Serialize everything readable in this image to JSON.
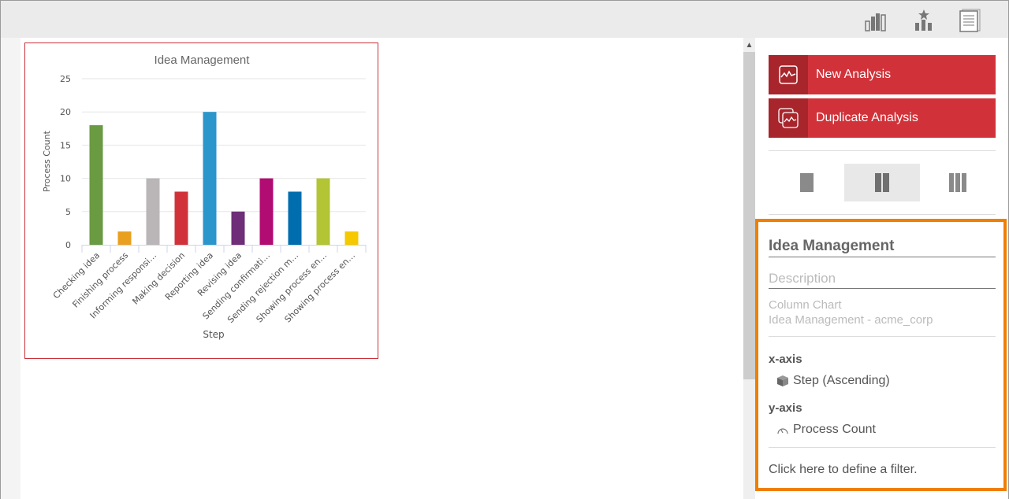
{
  "toolbar": {
    "icons": [
      "bar-chart-icon",
      "favorites-chart-icon",
      "report-pages-icon"
    ]
  },
  "actions": {
    "new_analysis": "New Analysis",
    "duplicate_analysis": "Duplicate Analysis"
  },
  "layout_options": {
    "selected": "two-column",
    "options": [
      "one-column",
      "two-column",
      "three-column"
    ]
  },
  "info": {
    "title": "Idea Management",
    "description_placeholder": "Description",
    "chart_type": "Column Chart",
    "source": "Idea Management - acme_corp",
    "x_axis_label": "x-axis",
    "x_axis_value": "Step (Ascending)",
    "y_axis_label": "y-axis",
    "y_axis_value": "Process Count",
    "filter_link": "Click here to define a filter."
  },
  "colors": {
    "accent": "#d13239",
    "highlight": "#f07e00"
  },
  "chart_data": {
    "type": "bar",
    "title": "Idea Management",
    "xlabel": "Step",
    "ylabel": "Process Count",
    "ylim": [
      0,
      25
    ],
    "yticks": [
      0,
      5,
      10,
      15,
      20,
      25
    ],
    "grid": true,
    "categories": [
      "Checking idea",
      "Finishing process",
      "Informing responsi…",
      "Making decision",
      "Reporting idea",
      "Revising idea",
      "Sending confirmati…",
      "Sending rejection m…",
      "Showing process en…",
      "Showing process en…"
    ],
    "values": [
      18,
      2,
      10,
      8,
      20,
      5,
      10,
      8,
      10,
      2
    ],
    "colors": [
      "#6a9a42",
      "#e9a020",
      "#bab6b8",
      "#d13239",
      "#2a96cc",
      "#6e2e78",
      "#b10c72",
      "#006eae",
      "#b3c434",
      "#f5c800"
    ]
  }
}
